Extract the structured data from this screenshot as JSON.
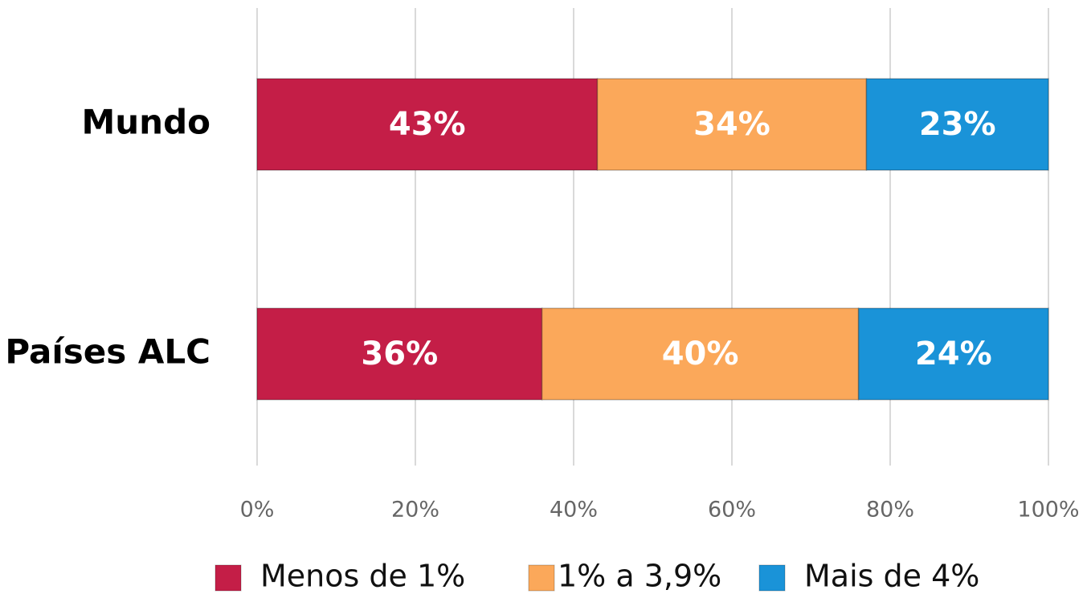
{
  "chart_data": {
    "type": "stacked_barh",
    "categories": [
      "Mundo",
      "Países ALC"
    ],
    "series": [
      {
        "name": "Menos de 1%",
        "color": "#c41e47",
        "values": [
          43,
          36
        ],
        "value_labels": [
          "43%",
          "36%"
        ]
      },
      {
        "name": "1% a 3,9%",
        "color": "#fba85a",
        "values": [
          34,
          40
        ],
        "value_labels": [
          "34%",
          "40%"
        ]
      },
      {
        "name": "Mais de 4%",
        "color": "#1a93d8",
        "values": [
          23,
          24
        ],
        "value_labels": [
          "23%",
          "24%"
        ]
      }
    ],
    "xlim": [
      0,
      100
    ],
    "xticks": [
      {
        "value": 0,
        "label": "0%"
      },
      {
        "value": 20,
        "label": "20%"
      },
      {
        "value": 40,
        "label": "40%"
      },
      {
        "value": 60,
        "label": "60%"
      },
      {
        "value": 80,
        "label": "80%"
      },
      {
        "value": 100,
        "label": "100%"
      }
    ],
    "grid": true,
    "legend": "bottom"
  }
}
